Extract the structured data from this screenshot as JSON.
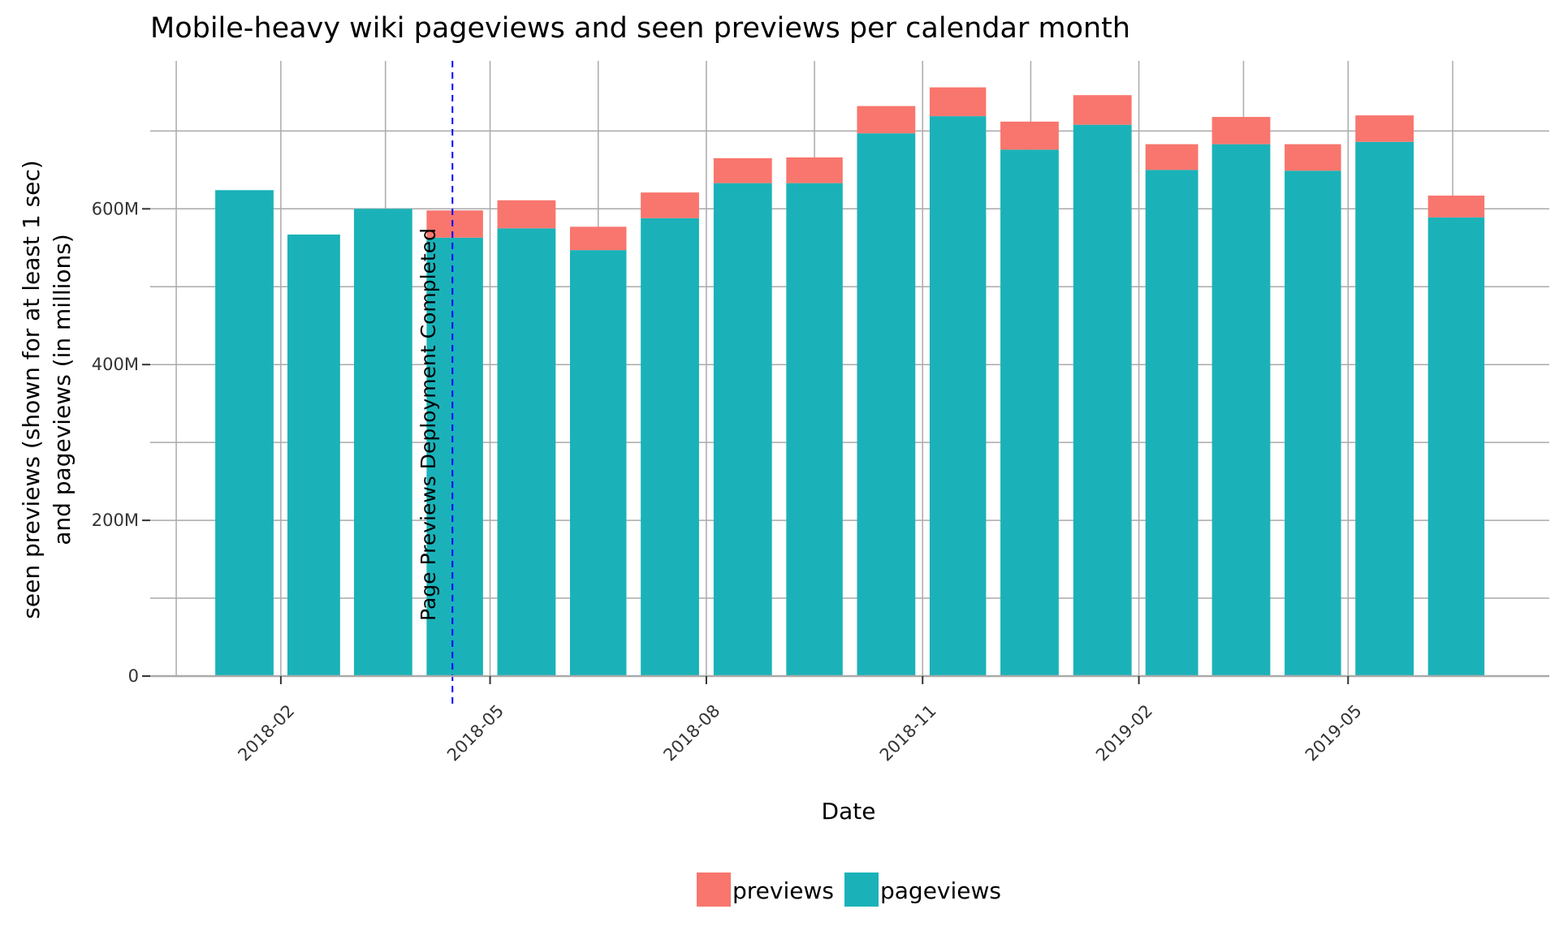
{
  "chart_data": {
    "type": "bar",
    "stacked": true,
    "title": "Mobile-heavy wiki pageviews and seen previews per calendar month",
    "xlabel": "Date",
    "ylabel_line1": "seen previews (shown for at least 1 sec)",
    "ylabel_line2": "and pageviews (in millions)",
    "x_ticks": [
      "2018-02",
      "2018-05",
      "2018-08",
      "2018-11",
      "2019-02",
      "2019-05"
    ],
    "y_ticks": [
      "0",
      "200M",
      "400M",
      "600M"
    ],
    "y_tick_values": [
      0,
      200,
      400,
      600
    ],
    "ylim": [
      0,
      790
    ],
    "y_unit": "millions",
    "grid": true,
    "legend_position": "bottom",
    "legend": [
      {
        "label": "previews",
        "color": "#F8766D"
      },
      {
        "label": "pageviews",
        "color": "#1AB2B8"
      }
    ],
    "x_start": "2018-01-01",
    "x_end": "2019-07-01",
    "categories": [
      "2018-01",
      "2018-02",
      "2018-03",
      "2018-04",
      "2018-05",
      "2018-06",
      "2018-07",
      "2018-08",
      "2018-09",
      "2018-10",
      "2018-11",
      "2018-12",
      "2019-01",
      "2019-02",
      "2019-03",
      "2019-04",
      "2019-05",
      "2019-06"
    ],
    "series": [
      {
        "name": "pageviews",
        "color": "#1AB2B8",
        "values": [
          624,
          567,
          600,
          563,
          575,
          547,
          588,
          633,
          633,
          697,
          719,
          676,
          708,
          650,
          683,
          649,
          686,
          589
        ]
      },
      {
        "name": "previews",
        "color": "#F8766D",
        "values": [
          0,
          0,
          0,
          35,
          36,
          30,
          33,
          32,
          33,
          35,
          37,
          36,
          38,
          33,
          35,
          34,
          34,
          28
        ]
      }
    ],
    "annotation": {
      "label": "Page Previews Deployment Completed",
      "date": "2018-04-15",
      "color": "#0000FF",
      "line_style": "dashed"
    }
  }
}
